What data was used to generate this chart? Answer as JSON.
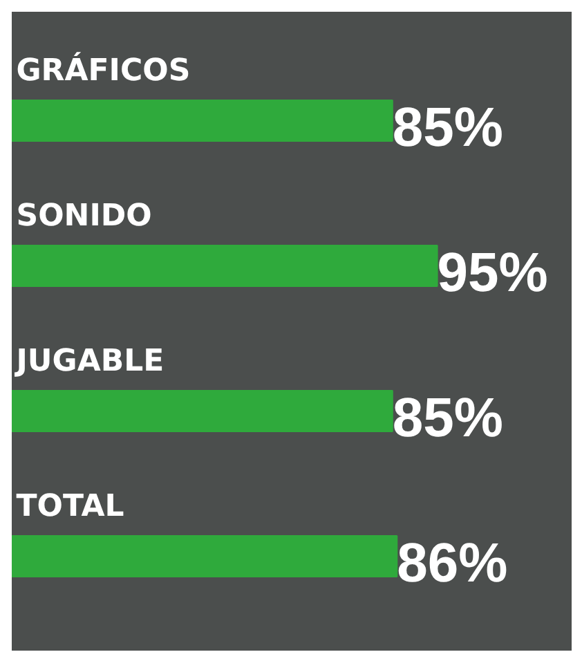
{
  "chart_data": {
    "type": "bar",
    "orientation": "horizontal",
    "categories": [
      "GRÁFICOS",
      "SONIDO",
      "JUGABLE",
      "TOTAL"
    ],
    "values": [
      85,
      95,
      85,
      86
    ],
    "color": "#2faa3c",
    "value_labels": [
      "85%",
      "95%",
      "85%",
      "86%"
    ],
    "xlim": [
      0,
      125
    ],
    "tick_labels": false
  }
}
